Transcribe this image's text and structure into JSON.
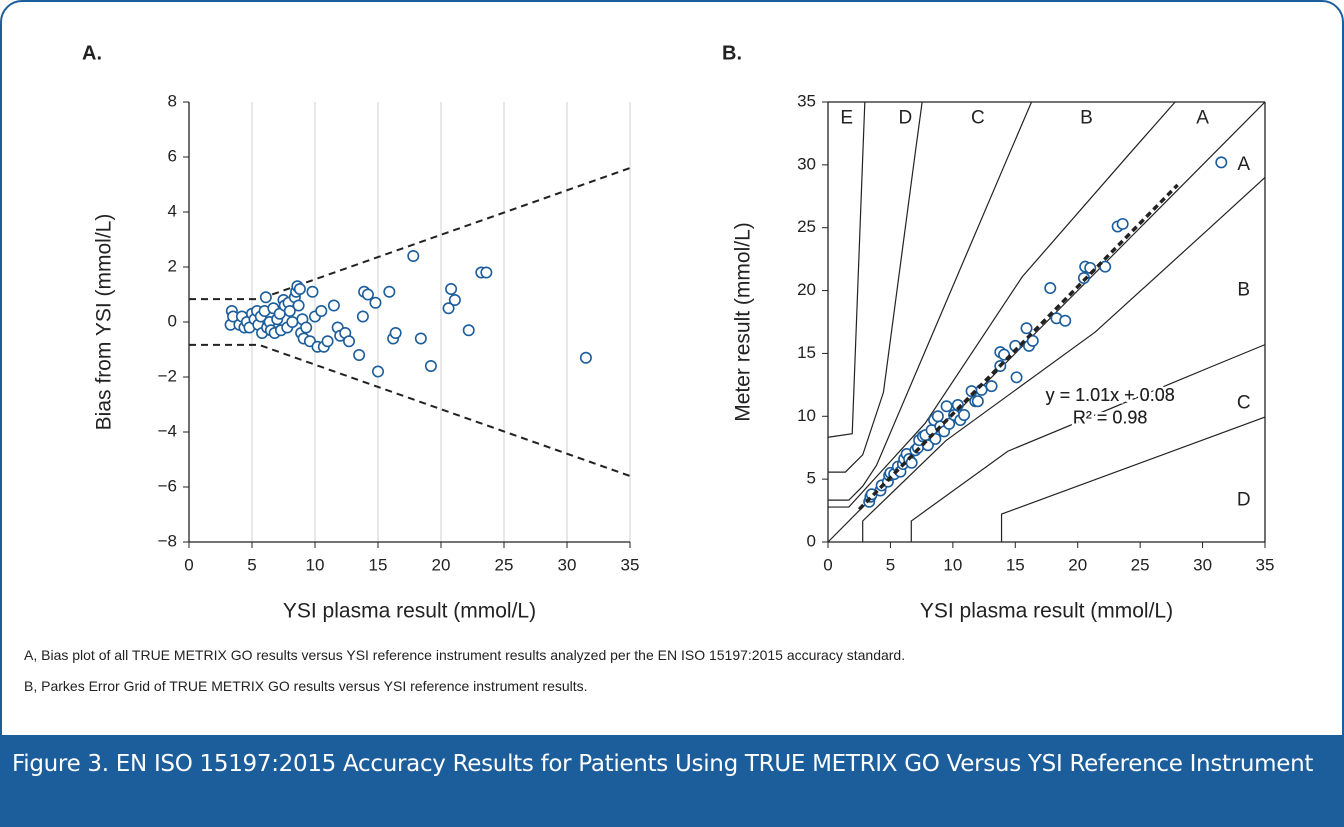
{
  "chart_data": [
    {
      "type": "scatter",
      "panel_label": "A.",
      "xlabel": "YSI plasma result (mmol/L)",
      "ylabel": "Bias from YSI (mmol/L)",
      "color": "#1c5d9b",
      "grid": "x",
      "xlim": [
        0,
        35
      ],
      "xticks": [
        0,
        5,
        10,
        15,
        20,
        25,
        30,
        35
      ],
      "ylim": [
        -8,
        8
      ],
      "yticks": [
        {
          "value": -8,
          "label": "−8"
        },
        {
          "value": -6,
          "label": "−6"
        },
        {
          "value": -4,
          "label": "−4"
        },
        {
          "value": -2,
          "label": "−2"
        },
        0,
        2,
        4,
        6,
        8
      ],
      "x": [
        3.3,
        3.4,
        3.5,
        4.0,
        4.2,
        4.4,
        4.6,
        4.8,
        5.0,
        5.2,
        5.4,
        5.5,
        5.7,
        5.8,
        6.0,
        6.1,
        6.2,
        6.4,
        6.5,
        6.7,
        6.8,
        7.0,
        7.2,
        7.3,
        7.5,
        7.6,
        7.8,
        7.9,
        8.0,
        8.2,
        8.4,
        8.5,
        8.6,
        8.7,
        8.8,
        8.9,
        9.0,
        9.1,
        9.3,
        9.6,
        9.8,
        10.0,
        10.2,
        10.5,
        10.7,
        11.0,
        11.5,
        11.8,
        12.0,
        12.4,
        12.7,
        13.5,
        13.8,
        13.9,
        14.2,
        14.8,
        15.0,
        15.9,
        16.2,
        16.4,
        17.8,
        18.4,
        19.2,
        20.6,
        20.8,
        21.1,
        22.2,
        23.2,
        23.6,
        31.5
      ],
      "y": [
        -0.1,
        0.4,
        0.2,
        -0.1,
        0.2,
        -0.2,
        0,
        -0.2,
        0.3,
        0.1,
        0.4,
        -0.1,
        0.2,
        -0.4,
        0.4,
        0.9,
        -0.2,
        0,
        -0.3,
        0.5,
        -0.4,
        0.1,
        0.3,
        -0.3,
        0.8,
        0.6,
        -0.2,
        0.7,
        0.4,
        0,
        0.9,
        1.1,
        1.3,
        0.6,
        1.2,
        -0.4,
        0.1,
        -0.6,
        -0.2,
        -0.7,
        1.1,
        0.2,
        -0.9,
        0.4,
        -0.9,
        -0.7,
        0.6,
        -0.2,
        -0.5,
        -0.4,
        -0.7,
        -1.2,
        0.2,
        1.1,
        1.0,
        0.7,
        -1.8,
        1.1,
        -0.6,
        -0.4,
        2.4,
        -0.6,
        -1.6,
        0.5,
        1.2,
        0.8,
        -0.3,
        1.8,
        1.8,
        -1.3
      ],
      "boundaries": [
        {
          "x": [
            0,
            5.55,
            35
          ],
          "y": [
            0.83,
            0.83,
            5.6
          ],
          "dashed": true
        },
        {
          "x": [
            0,
            5.55,
            35
          ],
          "y": [
            -0.83,
            -0.83,
            -5.6
          ],
          "dashed": true
        }
      ]
    },
    {
      "type": "scatter",
      "panel_label": "B.",
      "xlabel": "YSI plasma result (mmol/L)",
      "ylabel": "Meter result (mmol/L)",
      "color": "#1c5d9b",
      "grid": false,
      "xlim": [
        0,
        35
      ],
      "xticks": [
        0,
        5,
        10,
        15,
        20,
        25,
        30,
        35
      ],
      "ylim": [
        0,
        35
      ],
      "yticks": [
        0,
        5,
        10,
        15,
        20,
        25,
        30,
        35
      ],
      "x": [
        3.3,
        3.4,
        3.5,
        4.2,
        4.3,
        4.8,
        4.9,
        5.0,
        5.3,
        5.6,
        5.8,
        6.0,
        6.1,
        6.3,
        6.5,
        6.7,
        7.0,
        7.2,
        7.3,
        7.6,
        7.8,
        8.0,
        8.3,
        8.5,
        8.6,
        8.8,
        9.0,
        9.3,
        9.5,
        9.7,
        10.1,
        10.4,
        10.6,
        10.9,
        11.5,
        11.8,
        12.0,
        12.3,
        13.1,
        13.8,
        13.8,
        14.1,
        15.0,
        15.1,
        15.9,
        16.1,
        16.4,
        17.8,
        18.3,
        19.0,
        20.5,
        20.6,
        21.0,
        22.2,
        23.2,
        23.6,
        31.5
      ],
      "y": [
        3.2,
        3.6,
        3.8,
        4.1,
        4.5,
        4.8,
        5.3,
        5.5,
        5.4,
        6.0,
        5.6,
        6.2,
        6.6,
        7.0,
        6.6,
        6.3,
        7.3,
        7.5,
        8.1,
        8.4,
        8.5,
        7.7,
        8.9,
        9.7,
        8.2,
        10.0,
        9.2,
        8.8,
        10.8,
        9.4,
        10.1,
        10.9,
        9.7,
        10.1,
        12.0,
        11.2,
        11.2,
        12.1,
        12.4,
        14.0,
        15.1,
        14.9,
        15.6,
        13.1,
        17.0,
        15.6,
        16.0,
        20.2,
        17.8,
        17.6,
        21.0,
        21.9,
        21.8,
        21.9,
        25.1,
        25.3,
        30.2
      ],
      "boundaries": [
        {
          "x": [
            0,
            35
          ],
          "y": [
            0,
            35
          ],
          "dashed": false
        },
        {
          "x": [
            0,
            1.67,
            7.78,
            15.56,
            23.9,
            27.8
          ],
          "y": [
            2.78,
            2.78,
            9.44,
            21.1,
            30.6,
            35
          ],
          "dashed": false
        },
        {
          "x": [
            0,
            1.67,
            2.78,
            3.89,
            14.4,
            16.3
          ],
          "y": [
            3.33,
            3.33,
            4.44,
            6.11,
            30.6,
            35
          ],
          "dashed": false
        },
        {
          "x": [
            0,
            1.39,
            2.78,
            4.44,
            6.94,
            7.54
          ],
          "y": [
            5.56,
            5.56,
            6.94,
            11.9,
            30.6,
            35
          ],
          "dashed": false
        },
        {
          "x": [
            0,
            1.94,
            2.78,
            2.95
          ],
          "y": [
            8.33,
            8.61,
            30.6,
            35
          ],
          "dashed": false
        },
        {
          "x": [
            2.78,
            2.78,
            9.44,
            21.4,
            30.6,
            35
          ],
          "y": [
            0,
            1.67,
            8.06,
            16.7,
            25,
            29
          ],
          "dashed": false
        },
        {
          "x": [
            6.67,
            6.67,
            14.4,
            30.6,
            35
          ],
          "y": [
            0,
            1.67,
            7.22,
            13.9,
            15.7
          ],
          "dashed": false
        },
        {
          "x": [
            13.9,
            13.9,
            30.6,
            35
          ],
          "y": [
            0,
            2.22,
            8.33,
            9.94
          ],
          "dashed": false
        }
      ],
      "trendline": {
        "x": [
          2.5,
          28
        ],
        "y": [
          2.6,
          28.4
        ]
      },
      "zone_labels": [
        "E",
        "D",
        "C",
        "B",
        "A",
        "A",
        "B",
        "C",
        "D"
      ],
      "annotations": [
        "y = 1.01x + 0.08",
        "R² = 0.98"
      ]
    }
  ],
  "notes": [
    "A, Bias plot of all TRUE METRIX GO results versus YSI reference instrument results analyzed per the EN ISO 15197:2015 accuracy standard.",
    "B, Parkes Error Grid of TRUE METRIX GO results versus YSI reference instrument results."
  ],
  "figure_title": "Figure 3.  EN ISO 15197:2015 Accuracy Results for Patients Using TRUE METRIX GO Versus YSI Reference Instrument"
}
